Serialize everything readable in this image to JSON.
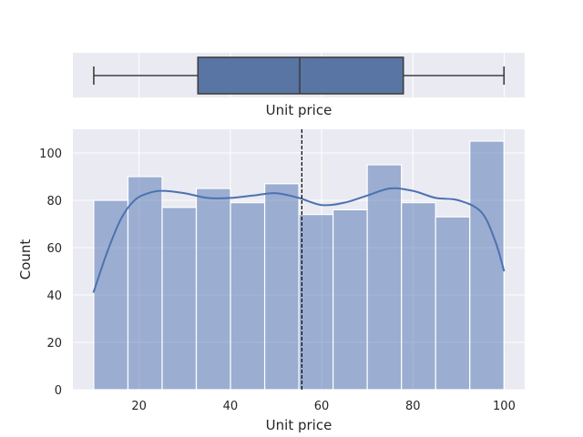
{
  "chart_data": [
    {
      "type": "box",
      "xlabel": "Unit price",
      "ylabel": "",
      "xlim": [
        5.5,
        104.5
      ],
      "whisker_low": 10.08,
      "q1": 32.9,
      "median": 55.2,
      "q3": 77.9,
      "whisker_high": 99.96,
      "grid": true,
      "colors": {
        "box": "#5875a4",
        "line": "#3f3f3f",
        "background": "#eaeaf2",
        "grid": "#ffffff"
      }
    },
    {
      "type": "histogram",
      "xlabel": "Unit price",
      "ylabel": "Count",
      "xlim": [
        5.5,
        104.5
      ],
      "ylim": [
        0,
        110
      ],
      "xticks": [
        "20",
        "40",
        "60",
        "80",
        "100"
      ],
      "yticks": [
        "0",
        "20",
        "40",
        "60",
        "80",
        "100"
      ],
      "bins": [
        {
          "x0": 10.08,
          "x1": 17.57,
          "count": 80
        },
        {
          "x0": 17.57,
          "x1": 25.06,
          "count": 90
        },
        {
          "x0": 25.06,
          "x1": 32.55,
          "count": 77
        },
        {
          "x0": 32.55,
          "x1": 40.04,
          "count": 85
        },
        {
          "x0": 40.04,
          "x1": 47.53,
          "count": 79
        },
        {
          "x0": 47.53,
          "x1": 55.02,
          "count": 87
        },
        {
          "x0": 55.02,
          "x1": 62.51,
          "count": 74
        },
        {
          "x0": 62.51,
          "x1": 70.0,
          "count": 76
        },
        {
          "x0": 70.0,
          "x1": 77.49,
          "count": 95
        },
        {
          "x0": 77.49,
          "x1": 84.98,
          "count": 79
        },
        {
          "x0": 84.98,
          "x1": 92.47,
          "count": 73
        },
        {
          "x0": 92.47,
          "x1": 99.96,
          "count": 105
        }
      ],
      "kde": {
        "x": [
          10,
          13,
          16,
          19,
          22,
          25,
          30,
          35,
          40,
          45,
          50,
          55,
          60,
          65,
          70,
          75,
          80,
          85,
          90,
          95,
          98,
          100
        ],
        "y": [
          41,
          58,
          72,
          80,
          83,
          84,
          83,
          81,
          81,
          82,
          83,
          81,
          78,
          79,
          82,
          85,
          84,
          81,
          80,
          75,
          63,
          50
        ]
      },
      "mean_line": 55.67,
      "grid": true,
      "colors": {
        "bar": "#4c72b0",
        "bar_alpha": 0.5,
        "kde": "#4c72b0",
        "mean_line": "#000000",
        "background": "#eaeaf2",
        "grid": "#ffffff"
      }
    }
  ]
}
